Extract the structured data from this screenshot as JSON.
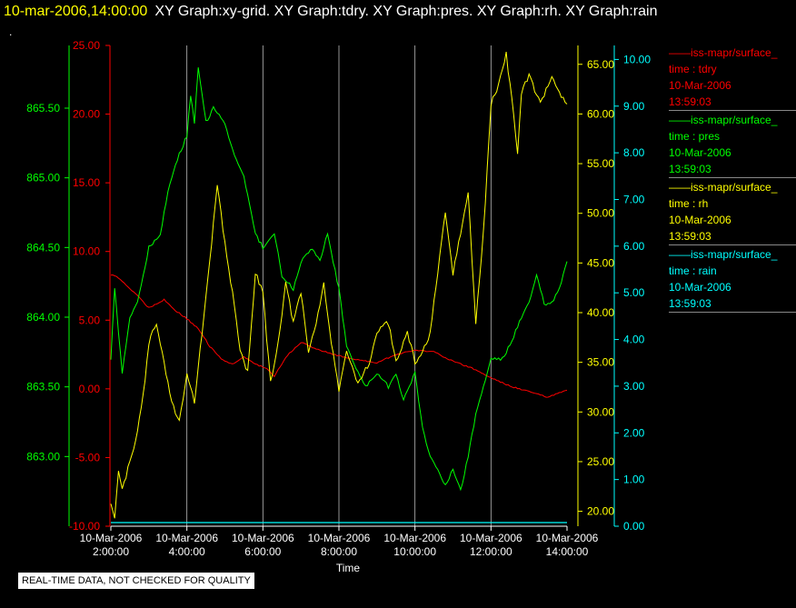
{
  "header": {
    "timestamp": "10-mar-2006,14:00:00",
    "graph_titles": "XY Graph:xy-grid.  XY Graph:tdry.  XY Graph:pres.  XY Graph:rh.  XY Graph:rain",
    "dot": "."
  },
  "footer": {
    "qc_note": "REAL-TIME DATA, NOT CHECKED FOR QUALITY"
  },
  "legend": [
    {
      "source": "iss-mapr/surface_",
      "var": "time : tdry",
      "date": "10-Mar-2006",
      "time": "13:59:03",
      "color": "#ff0000"
    },
    {
      "source": "iss-mapr/surface_",
      "var": "time : pres",
      "date": "10-Mar-2006",
      "time": "13:59:03",
      "color": "#00ff00"
    },
    {
      "source": "iss-mapr/surface_",
      "var": "time : rh",
      "date": "10-Mar-2006",
      "time": "13:59:03",
      "color": "#ffff00"
    },
    {
      "source": "iss-mapr/surface_",
      "var": "time : rain",
      "date": "10-Mar-2006",
      "time": "13:59:03",
      "color": "#00ffff"
    }
  ],
  "chart_data": {
    "type": "line",
    "xlabel": "Time",
    "x_ticks": [
      [
        "10-Mar-2006",
        "2:00:00"
      ],
      [
        "10-Mar-2006",
        "4:00:00"
      ],
      [
        "10-Mar-2006",
        "6:00:00"
      ],
      [
        "10-Mar-2006",
        "8:00:00"
      ],
      [
        "10-Mar-2006",
        "10:00:00"
      ],
      [
        "10-Mar-2006",
        "12:00:00"
      ],
      [
        "10-Mar-2006",
        "14:00:00"
      ]
    ],
    "xlim": [
      2,
      14
    ],
    "grid": "vertical lines at time ticks",
    "axes": {
      "tdry": {
        "color": "#ff0000",
        "ylim": [
          -10,
          25
        ],
        "ticks": [
          "-10.00",
          "-5.00",
          "0.00",
          "5.00",
          "10.00",
          "15.00",
          "20.00",
          "25.00"
        ]
      },
      "pres": {
        "color": "#00ff00",
        "ylim": [
          862.5,
          865.95
        ],
        "ticks": [
          "863.00",
          "863.50",
          "864.00",
          "864.50",
          "865.00",
          "865.50"
        ]
      },
      "rh": {
        "color": "#ffff00",
        "ylim": [
          18.5,
          66.9
        ],
        "ticks": [
          "20.00",
          "25.00",
          "30.00",
          "35.00",
          "40.00",
          "45.00",
          "50.00",
          "55.00",
          "60.00",
          "65.00"
        ]
      },
      "rain": {
        "color": "#00ffff",
        "ylim": [
          0,
          10.3
        ],
        "ticks": [
          "0.00",
          "1.00",
          "2.00",
          "3.00",
          "4.00",
          "5.00",
          "6.00",
          "7.00",
          "8.00",
          "9.00",
          "10.00"
        ]
      }
    },
    "series": [
      {
        "name": "tdry",
        "color": "#ff0000",
        "x": [
          2.0,
          2.2,
          2.5,
          2.8,
          3.0,
          3.2,
          3.4,
          3.7,
          4.0,
          4.3,
          4.6,
          4.9,
          5.2,
          5.5,
          5.8,
          6.1,
          6.3,
          6.6,
          7.0,
          7.5,
          8.0,
          8.5,
          9.0,
          9.5,
          10.0,
          10.5,
          11.0,
          11.5,
          12.0,
          12.5,
          13.0,
          13.5,
          14.0
        ],
        "y": [
          8.3,
          8.1,
          7.3,
          6.5,
          5.9,
          6.2,
          6.5,
          5.7,
          5.1,
          4.4,
          3.1,
          2.2,
          1.8,
          2.3,
          1.8,
          1.5,
          0.9,
          2.3,
          3.4,
          2.8,
          2.4,
          2.1,
          1.9,
          2.5,
          2.8,
          2.7,
          2.0,
          1.5,
          0.8,
          0.2,
          -0.2,
          -0.6,
          -0.1
        ]
      },
      {
        "name": "pres",
        "color": "#00ff00",
        "x": [
          2.0,
          2.1,
          2.2,
          2.3,
          2.5,
          2.7,
          3.0,
          3.3,
          3.5,
          3.7,
          4.0,
          4.1,
          4.2,
          4.3,
          4.4,
          4.5,
          4.7,
          5.0,
          5.2,
          5.5,
          5.8,
          6.0,
          6.3,
          6.5,
          6.8,
          7.0,
          7.3,
          7.5,
          7.7,
          8.0,
          8.2,
          8.5,
          8.7,
          9.0,
          9.3,
          9.5,
          9.7,
          10.0,
          10.2,
          10.4,
          10.6,
          10.8,
          11.0,
          11.2,
          11.4,
          11.6,
          11.8,
          12.0,
          12.3,
          12.5,
          12.8,
          13.0,
          13.2,
          13.4,
          13.6,
          13.8,
          14.0
        ],
        "y": [
          863.7,
          864.2,
          863.9,
          863.6,
          864.0,
          864.1,
          864.5,
          864.6,
          864.9,
          865.1,
          865.3,
          865.6,
          865.4,
          865.8,
          865.6,
          865.4,
          865.5,
          865.4,
          865.2,
          865.0,
          864.6,
          864.5,
          864.6,
          864.3,
          864.2,
          864.4,
          864.5,
          864.4,
          864.6,
          864.2,
          863.8,
          863.6,
          863.5,
          863.6,
          863.5,
          863.6,
          863.4,
          863.6,
          863.2,
          863.0,
          862.9,
          862.8,
          862.9,
          862.75,
          863.0,
          863.3,
          863.5,
          863.7,
          863.7,
          863.8,
          864.0,
          864.1,
          864.3,
          864.1,
          864.1,
          864.2,
          864.4
        ]
      },
      {
        "name": "rh",
        "color": "#ffff00",
        "x": [
          2.0,
          2.1,
          2.2,
          2.3,
          2.5,
          2.7,
          2.9,
          3.0,
          3.2,
          3.4,
          3.6,
          3.8,
          4.0,
          4.2,
          4.4,
          4.6,
          4.8,
          5.0,
          5.2,
          5.4,
          5.6,
          5.8,
          6.0,
          6.2,
          6.4,
          6.6,
          6.8,
          7.0,
          7.2,
          7.4,
          7.6,
          7.8,
          8.0,
          8.2,
          8.5,
          8.8,
          9.0,
          9.3,
          9.5,
          9.8,
          10.0,
          10.2,
          10.4,
          10.6,
          10.8,
          11.0,
          11.2,
          11.4,
          11.6,
          11.8,
          12.0,
          12.2,
          12.4,
          12.6,
          12.7,
          12.8,
          13.0,
          13.3,
          13.6,
          13.8,
          14.0
        ],
        "y": [
          21.0,
          19.5,
          24.0,
          22.0,
          25.0,
          28.0,
          33.0,
          37.0,
          39.0,
          35.0,
          31.0,
          29.0,
          34.0,
          31.0,
          38.0,
          45.0,
          53.0,
          47.0,
          42.0,
          36.0,
          34.0,
          44.0,
          42.0,
          33.0,
          37.0,
          43.0,
          39.0,
          42.0,
          36.0,
          39.0,
          43.0,
          37.0,
          32.0,
          36.0,
          33.0,
          35.0,
          38.0,
          39.0,
          35.0,
          38.0,
          35.0,
          36.0,
          38.0,
          44.0,
          50.0,
          44.0,
          48.0,
          52.0,
          39.0,
          48.0,
          61.0,
          63.0,
          66.0,
          60.0,
          56.0,
          62.0,
          64.0,
          61.0,
          64.0,
          62.0,
          61.0
        ]
      },
      {
        "name": "rain",
        "color": "#00ffff",
        "x": [
          2.0,
          14.0
        ],
        "y": [
          0.0,
          0.0
        ]
      }
    ]
  }
}
